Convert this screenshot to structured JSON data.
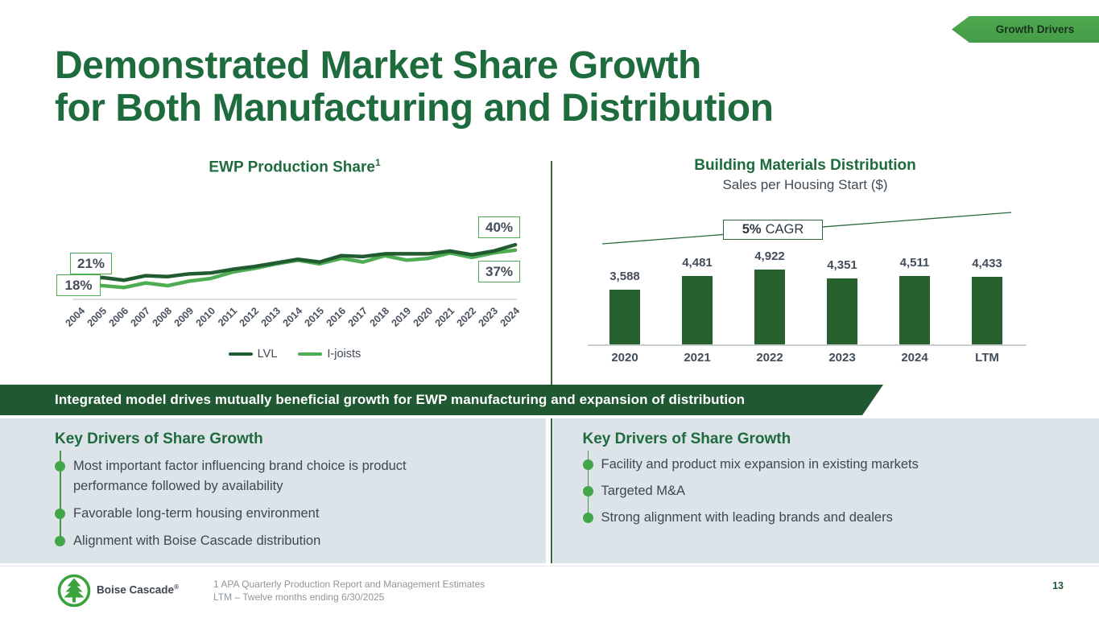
{
  "tag": {
    "label": "Growth Drivers"
  },
  "title": {
    "line1": "Demonstrated Market Share Growth",
    "line2": "for Both Manufacturing and Distribution"
  },
  "chart_data": [
    {
      "id": "ewp_production_share",
      "type": "line",
      "title": "EWP Production Share",
      "title_superscript": "1",
      "unit": "%",
      "x": [
        2004,
        2005,
        2006,
        2007,
        2008,
        2009,
        2010,
        2011,
        2012,
        2013,
        2014,
        2015,
        2016,
        2017,
        2018,
        2019,
        2020,
        2021,
        2022,
        2023,
        2024
      ],
      "series": [
        {
          "name": "LVL",
          "color": "#215c31",
          "values": [
            21,
            22,
            20.5,
            23,
            22.5,
            24,
            24.5,
            26.5,
            28,
            30,
            32,
            30.5,
            34,
            33.5,
            35,
            35,
            35,
            36.5,
            34.5,
            36.5,
            40
          ]
        },
        {
          "name": "I-joists",
          "color": "#4ead52",
          "values": [
            18,
            17.5,
            16.5,
            19,
            17.5,
            20,
            21.5,
            25,
            27,
            29.5,
            31.5,
            29.5,
            32.5,
            30.5,
            34,
            31.5,
            32.5,
            35.5,
            33,
            35.5,
            37
          ]
        }
      ],
      "callouts": [
        {
          "label": "21%",
          "series": "LVL",
          "position": "start"
        },
        {
          "label": "18%",
          "series": "I-joists",
          "position": "start"
        },
        {
          "label": "40%",
          "series": "LVL",
          "position": "end"
        },
        {
          "label": "37%",
          "series": "I-joists",
          "position": "end"
        }
      ],
      "ylim": [
        10,
        45
      ],
      "grid": false,
      "legend_position": "bottom"
    },
    {
      "id": "building_materials_distribution",
      "type": "bar",
      "title": "Building Materials Distribution",
      "subtitle": "Sales per Housing Start  ($)",
      "categories": [
        "2020",
        "2021",
        "2022",
        "2023",
        "2024",
        "LTM"
      ],
      "values": [
        3588,
        4481,
        4922,
        4351,
        4511,
        4433
      ],
      "value_labels": [
        "3,588",
        "4,481",
        "4,922",
        "4,351",
        "4,511",
        "4,433"
      ],
      "annotation": {
        "rate": "5%",
        "metric": "CAGR"
      },
      "bar_color": "#26612e",
      "ylim": [
        0,
        5300
      ],
      "grid": false
    }
  ],
  "banner": {
    "text": "Integrated model drives mutually beneficial growth for EWP manufacturing and expansion of distribution"
  },
  "key_drivers_left": {
    "heading": "Key Drivers of Share Growth",
    "bullets": [
      "Most important factor influencing brand choice is product performance followed by availability",
      "Favorable long-term housing environment",
      "Alignment with Boise Cascade distribution"
    ]
  },
  "key_drivers_right": {
    "heading": "Key Drivers of Share Growth",
    "bullets": [
      "Facility and product mix expansion in existing markets",
      "Targeted M&A",
      "Strong alignment with leading brands and dealers"
    ]
  },
  "footer": {
    "logo_text": "Boise Cascade",
    "logo_registered": "®",
    "footnote_line1": "1 APA Quarterly Production Report and Management Estimates",
    "footnote_line2": "LTM – Twelve months ending 6/30/2025",
    "page_number": "13"
  },
  "colors": {
    "title_green": "#1e6b3e",
    "dark_green": "#205831",
    "bar_green": "#26612e",
    "accent_green": "#4ead52",
    "tag_green": "#4ca34c",
    "panel_background": "#dce3e9",
    "slate_text": "#414b57",
    "footnote_gray": "#8e959b"
  }
}
